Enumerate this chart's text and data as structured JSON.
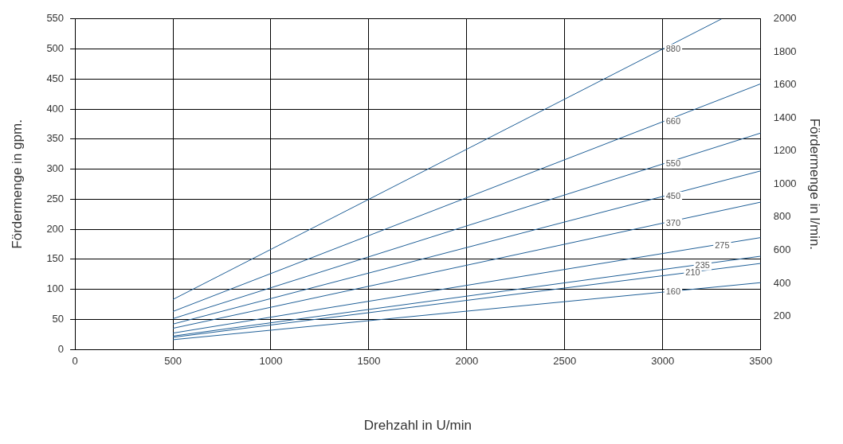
{
  "chart_data": {
    "type": "line",
    "xlabel": "Drehzahl in U/min",
    "ylabel": "Fördermenge in gpm.",
    "y2label": "Fördermenge in l/min.",
    "xlim": [
      0,
      3500
    ],
    "xticks": [
      0,
      500,
      1000,
      1500,
      2000,
      2500,
      3000,
      3500
    ],
    "ylim": [
      0,
      550
    ],
    "yticks": [
      0,
      50,
      100,
      150,
      200,
      250,
      300,
      350,
      400,
      450,
      500,
      550
    ],
    "y2lim": [
      0,
      2000
    ],
    "y2ticks": [
      200,
      400,
      600,
      800,
      1000,
      1200,
      1400,
      1600,
      1800,
      2000
    ],
    "grid": true,
    "legend": false,
    "marker": "none",
    "line_style": "solid",
    "series": [
      {
        "name": "880",
        "color": "#1f5f97",
        "x": [
          500,
          3300
        ],
        "values": [
          83,
          550
        ]
      },
      {
        "name": "660",
        "color": "#1f5f97",
        "x": [
          500,
          3500
        ],
        "values": [
          63,
          442
        ]
      },
      {
        "name": "550",
        "color": "#1f5f97",
        "x": [
          500,
          3500
        ],
        "values": [
          51,
          360
        ]
      },
      {
        "name": "450",
        "color": "#1f5f97",
        "x": [
          500,
          3500
        ],
        "values": [
          42,
          297
        ]
      },
      {
        "name": "370",
        "color": "#1f5f97",
        "x": [
          500,
          3500
        ],
        "values": [
          35,
          245
        ]
      },
      {
        "name": "275",
        "color": "#1f5f97",
        "x": [
          500,
          3500
        ],
        "values": [
          27,
          186
        ]
      },
      {
        "name": "235",
        "color": "#1f5f97",
        "x": [
          500,
          3500
        ],
        "values": [
          22,
          155
        ]
      },
      {
        "name": "210",
        "color": "#1f5f97",
        "x": [
          500,
          3500
        ],
        "values": [
          20,
          143
        ]
      },
      {
        "name": "160",
        "color": "#1f5f97",
        "x": [
          500,
          3500
        ],
        "values": [
          16,
          111
        ]
      }
    ]
  }
}
